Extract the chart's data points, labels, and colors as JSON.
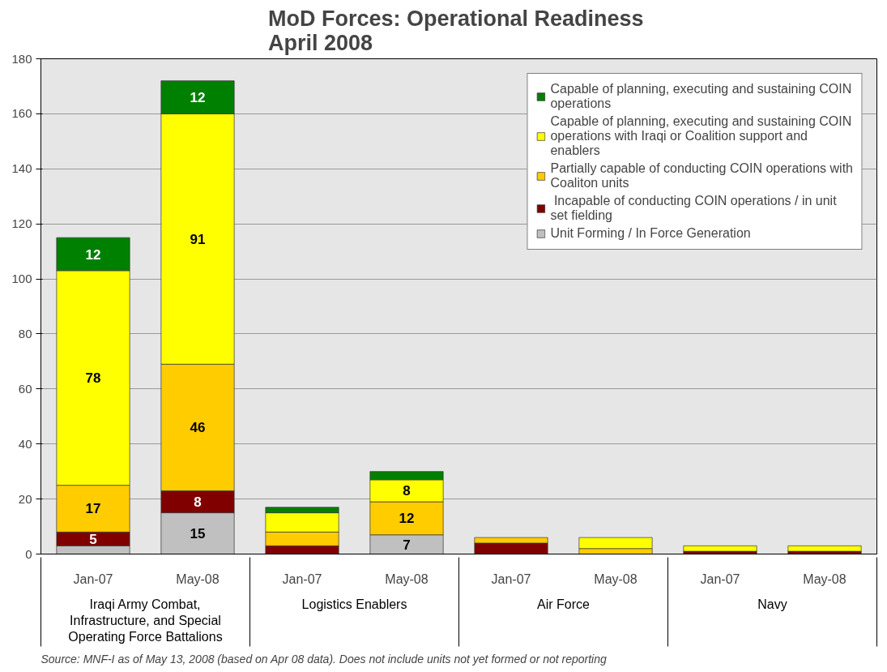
{
  "chart_data": {
    "type": "bar",
    "stacked": true,
    "title": "MoD Forces:  Operational Readiness\nApril 2008",
    "categories": [
      "Jan-07",
      "May-08",
      "Jan-07",
      "May-08",
      "Jan-07",
      "May-08",
      "Jan-07",
      "May-08"
    ],
    "series": [
      {
        "name": "Unit Forming / In Force Generation",
        "color": "#c0c0c0",
        "values": [
          3,
          15,
          0,
          7,
          0,
          0,
          0,
          0
        ],
        "value_labels": [
          null,
          "15",
          null,
          "7",
          null,
          null,
          null,
          null
        ]
      },
      {
        "name": " Incapable of conducting COIN operations / in unit set fielding",
        "color": "#800000",
        "values": [
          5,
          8,
          3,
          0,
          4,
          0,
          1,
          1
        ],
        "value_labels": [
          "5",
          "8",
          null,
          null,
          null,
          null,
          null,
          null
        ]
      },
      {
        "name": "Partially capable of conducting COIN operations with Coaliton units",
        "color": "#ffcc00",
        "values": [
          17,
          46,
          5,
          12,
          2,
          2,
          0,
          0
        ],
        "value_labels": [
          "17",
          "46",
          null,
          "12",
          null,
          null,
          null,
          null
        ]
      },
      {
        "name": "Capable of planning, executing and sustaining COIN operations with Iraqi or Coalition support and enablers",
        "color": "#ffff00",
        "values": [
          78,
          91,
          7,
          8,
          0,
          4,
          2,
          2
        ],
        "value_labels": [
          "78",
          "91",
          null,
          "8",
          null,
          null,
          null,
          null
        ]
      },
      {
        "name": "Capable of planning, executing and sustaining COIN operations",
        "color": "#008000",
        "values": [
          12,
          12,
          2,
          3,
          0,
          0,
          0,
          0
        ],
        "value_labels": [
          "12",
          "12",
          null,
          null,
          null,
          null,
          null,
          null
        ]
      }
    ],
    "ylim": [
      0,
      180
    ],
    "yticks": [
      0,
      20,
      40,
      60,
      80,
      100,
      120,
      140,
      160,
      180
    ],
    "grid": "y",
    "legend": "top right",
    "annotations": [
      "Source:  MNF-I as of May 13, 2008 (based on Apr 08 data).  Does not include units not yet formed or not reporting",
      "Iraqi Army Combat, Infrastructure, and Special Operating Force Battalions",
      "Logistics Enablers",
      "Air Force",
      "Navy"
    ]
  }
}
